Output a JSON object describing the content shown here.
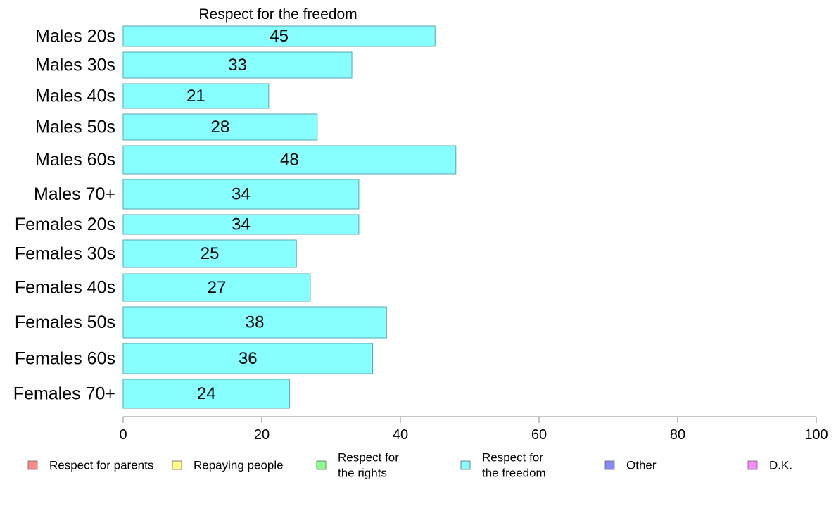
{
  "chart_data": {
    "type": "bar",
    "orientation": "horizontal",
    "title": "Respect for the freedom",
    "xlabel": "",
    "ylabel": "",
    "xlim": [
      0,
      100
    ],
    "xticks": [
      "0",
      "20",
      "40",
      "60",
      "80",
      "100"
    ],
    "categories": [
      "Males 20s",
      "Males 30s",
      "Males 40s",
      "Males 50s",
      "Males 60s",
      "Males 70+",
      "Females 20s",
      "Females 30s",
      "Females 40s",
      "Females 50s",
      "Females 60s",
      "Females 70+"
    ],
    "values": [
      45,
      33,
      21,
      28,
      48,
      34,
      34,
      25,
      27,
      38,
      36,
      24
    ],
    "bar_color": "#88ffff",
    "bar_stroke": "#5aa6b0",
    "grid": false,
    "legend_position": "bottom",
    "legend": [
      {
        "lines": [
          "Respect for parents"
        ],
        "color": "#ff8888"
      },
      {
        "lines": [
          "Repaying people"
        ],
        "color": "#ffff88"
      },
      {
        "lines": [
          "Respect for",
          "the rights"
        ],
        "color": "#88ff88"
      },
      {
        "lines": [
          "Respect for",
          "the freedom"
        ],
        "color": "#88ffff"
      },
      {
        "lines": [
          "Other"
        ],
        "color": "#8888ff"
      },
      {
        "lines": [
          "D.K."
        ],
        "color": "#ff88ff"
      }
    ]
  }
}
